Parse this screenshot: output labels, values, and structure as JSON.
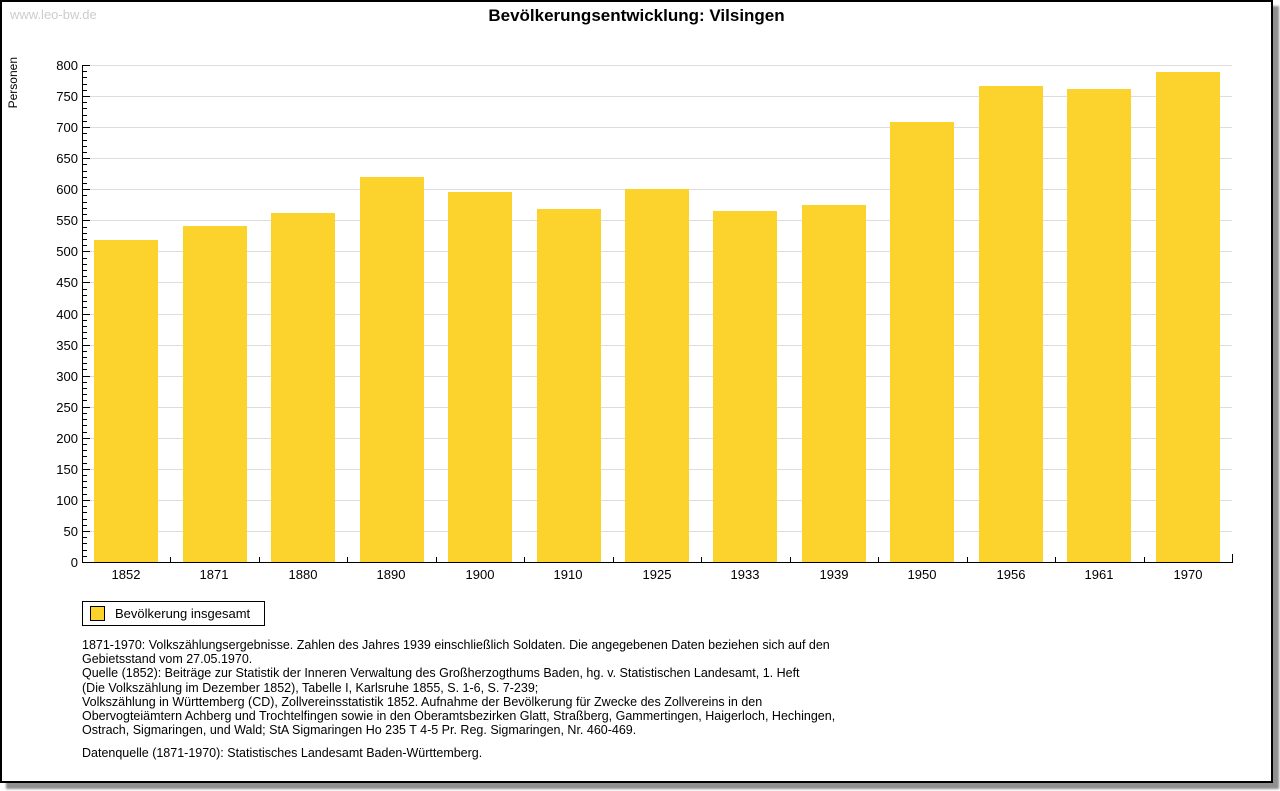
{
  "window": {
    "watermark": "www.leo-bw.de"
  },
  "chart_data": {
    "type": "bar",
    "title": "Bevölkerungsentwicklung: Vilsingen",
    "ylabel": "Personen",
    "xlabel": "",
    "categories": [
      "1852",
      "1871",
      "1880",
      "1890",
      "1900",
      "1910",
      "1925",
      "1933",
      "1939",
      "1950",
      "1956",
      "1961",
      "1970"
    ],
    "values": [
      518,
      541,
      561,
      620,
      595,
      568,
      600,
      565,
      575,
      708,
      767,
      762,
      788
    ],
    "ylim": [
      0,
      800
    ],
    "ytick_major": 50,
    "ytick_minor": 10,
    "grid": true,
    "legend_position": "bottom-left",
    "bar_color": "#FCD32C",
    "gridline_color": "#dddddd",
    "legend": {
      "label": "Bevölkerung insgesamt"
    }
  },
  "footnotes": {
    "lines": [
      "1871-1970: Volkszählungsergebnisse. Zahlen des Jahres 1939 einschließlich Soldaten. Die angegebenen Daten beziehen sich auf den",
      "Gebietsstand vom 27.05.1970.",
      "Quelle (1852): Beiträge zur Statistik der Inneren Verwaltung des Großherzogthums Baden, hg. v. Statistischen Landesamt, 1. Heft",
      "(Die Volkszählung im Dezember 1852), Tabelle I, Karlsruhe 1855, S. 1-6, S. 7-239;",
      "Volkszählung in Württemberg (CD), Zollvereinsstatistik 1852. Aufnahme der Bevölkerung für Zwecke des Zollvereins in den",
      "Obervogteiämtern Achberg und Trochtelfingen sowie in den Oberamtsbezirken Glatt, Straßberg, Gammertingen, Haigerloch, Hechingen,",
      "Ostrach, Sigmaringen, und Wald; StA Sigmaringen Ho 235 T 4-5 Pr. Reg. Sigmaringen, Nr. 460-469."
    ],
    "datasource": "Datenquelle (1871-1970): Statistisches Landesamt Baden-Württemberg."
  }
}
